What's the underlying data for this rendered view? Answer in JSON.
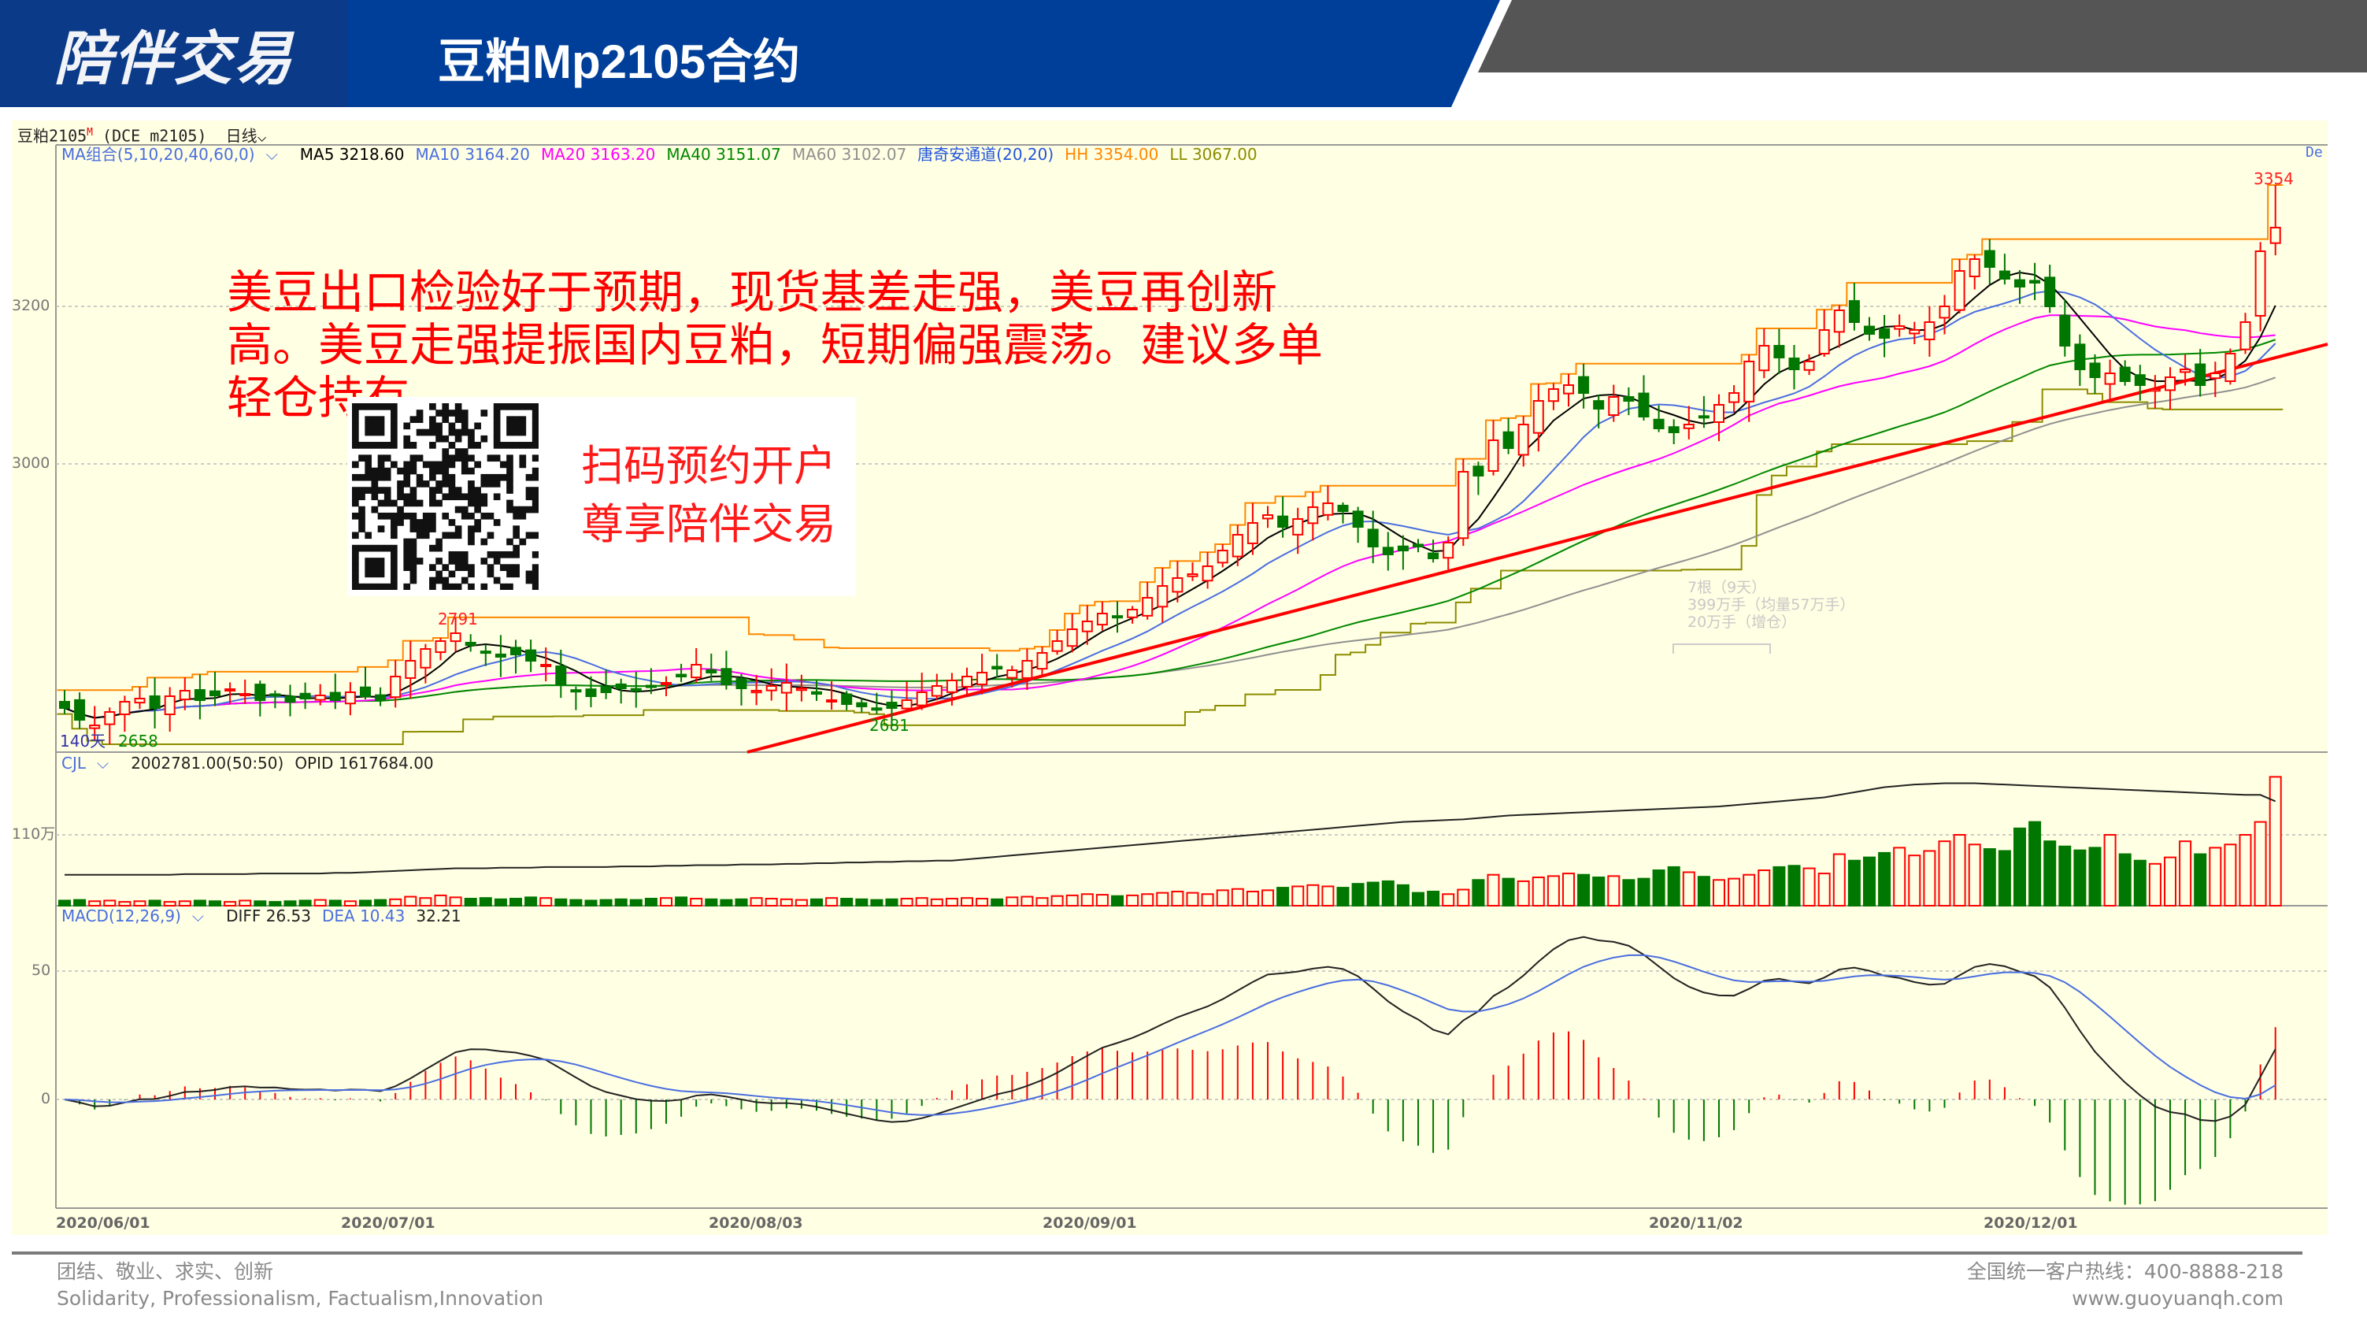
{
  "header": {
    "logo_text": "陪伴交易",
    "title": "豆粕Mp2105合约",
    "colors": {
      "band": "#003f99",
      "logo_bg": "#0b3a88",
      "gray_band": "#555555"
    }
  },
  "chart_header": {
    "symbol": "豆粕2105",
    "symbol_flag": "M",
    "exchange_code": "(DCE m2105)",
    "period": "日线",
    "period_icon": "chevron-down-icon"
  },
  "indicators": {
    "ma_group": "MA组合(5,10,20,40,60,0)",
    "ma5": "MA5 3218.60",
    "ma10": "MA10 3164.20",
    "ma20": "MA20 3163.20",
    "ma40": "MA40 3151.07",
    "ma60": "MA60 3102.07",
    "channel": "唐奇安通道(20,20)",
    "hh": "HH 3354.00",
    "ll": "LL 3067.00",
    "right_label": "De"
  },
  "volume_panel": {
    "name": "CJL",
    "value": "2002781.00(50:50)",
    "opid": "OPID 1617684.00",
    "axis_label": "110万"
  },
  "macd_panel": {
    "name": "MACD(12,26,9)",
    "diff": "DIFF 26.53",
    "dea": "DEA 10.43",
    "macd": "32.21",
    "axis_labels": [
      "50",
      "0"
    ]
  },
  "comment": "美豆出口检验好于预期，现货基差走强，美豆再创新高。美豆走强提振国内豆粕，短期偏强震荡。建议多单轻仓持有。",
  "promo": {
    "line1": "扫码预约开户",
    "line2": "尊享陪伴交易"
  },
  "volume_note": [
    "7根（9天）",
    "399万手（均量57万手）",
    "20万手（增仓）"
  ],
  "footer": {
    "motto_cn": "团结、敬业、求实、创新",
    "motto_en": "Solidarity, Professionalism, Factualism,Innovation",
    "hotline": "全国统一客户热线：400-8888-218",
    "website": "www.guoyuanqh.com"
  },
  "chart_data": {
    "type": "candlestick",
    "price_axis": {
      "ticks": [
        "3200",
        "3000"
      ]
    },
    "x_ticks": [
      "2020/06/01",
      "2020/07/01",
      "2020/08/03",
      "2020/09/01",
      "2020/11/02",
      "2020/12/01"
    ],
    "annotations": {
      "high_last": "3354",
      "high_july": "2791",
      "low_aug": "2681",
      "low_june": "2658",
      "bar_count": "140天"
    },
    "colors": {
      "up": "#ff0000",
      "down": "#007700",
      "ma5": "#000000",
      "ma10": "#4a6ee0",
      "ma20": "#ff00ff",
      "ma40": "#008800",
      "ma60": "#909090",
      "hh": "#ff8800",
      "ll": "#8c8c00",
      "trendline": "#ff0000"
    },
    "close": [
      2690,
      2675,
      2668,
      2685,
      2698,
      2702,
      2690,
      2705,
      2712,
      2700,
      2706,
      2714,
      2708,
      2700,
      2706,
      2698,
      2702,
      2706,
      2700,
      2710,
      2705,
      2700,
      2730,
      2750,
      2765,
      2775,
      2785,
      2770,
      2760,
      2755,
      2758,
      2750,
      2745,
      2720,
      2712,
      2705,
      2710,
      2715,
      2712,
      2718,
      2722,
      2730,
      2745,
      2735,
      2720,
      2715,
      2712,
      2718,
      2722,
      2715,
      2708,
      2700,
      2695,
      2692,
      2688,
      2690,
      2700,
      2710,
      2718,
      2725,
      2730,
      2735,
      2740,
      2738,
      2750,
      2760,
      2775,
      2790,
      2800,
      2810,
      2805,
      2815,
      2830,
      2845,
      2855,
      2860,
      2870,
      2890,
      2910,
      2925,
      2935,
      2920,
      2930,
      2945,
      2950,
      2940,
      2920,
      2895,
      2885,
      2890,
      2895,
      2880,
      2900,
      2990,
      2985,
      3030,
      3020,
      3050,
      3080,
      3095,
      3100,
      3090,
      3070,
      3085,
      3080,
      3060,
      3045,
      3040,
      3050,
      3060,
      3075,
      3090,
      3130,
      3150,
      3135,
      3120,
      3130,
      3170,
      3195,
      3180,
      3165,
      3160,
      3175,
      3170,
      3180,
      3200,
      3245,
      3260,
      3250,
      3235,
      3225,
      3230,
      3200,
      3150,
      3120,
      3110,
      3115,
      3105,
      3100,
      3095,
      3110,
      3120,
      3100,
      3115,
      3140,
      3180,
      3270,
      3300
    ],
    "volume_wan": [
      8,
      9,
      7,
      8,
      6,
      7,
      8,
      6,
      7,
      8,
      7,
      6,
      8,
      7,
      6,
      7,
      8,
      9,
      8,
      7,
      8,
      9,
      10,
      14,
      12,
      16,
      13,
      11,
      12,
      10,
      11,
      13,
      12,
      10,
      9,
      8,
      9,
      10,
      9,
      11,
      12,
      13,
      11,
      10,
      9,
      10,
      12,
      11,
      10,
      9,
      10,
      12,
      11,
      10,
      9,
      10,
      11,
      12,
      10,
      11,
      12,
      11,
      10,
      13,
      14,
      12,
      15,
      16,
      18,
      17,
      15,
      16,
      18,
      20,
      22,
      20,
      18,
      24,
      26,
      22,
      24,
      28,
      30,
      32,
      30,
      28,
      34,
      36,
      38,
      32,
      20,
      22,
      18,
      25,
      40,
      48,
      42,
      38,
      44,
      46,
      50,
      48,
      44,
      46,
      40,
      42,
      55,
      60,
      52,
      45,
      40,
      42,
      48,
      55,
      60,
      62,
      58,
      50,
      80,
      70,
      75,
      82,
      90,
      78,
      85,
      100,
      110,
      95,
      88,
      85,
      120,
      130,
      100,
      92,
      86,
      90,
      110,
      80,
      70,
      65,
      75,
      100,
      80,
      90,
      95,
      110,
      130,
      200
    ],
    "open_interest_wan": [
      48,
      48,
      48,
      48,
      48,
      48,
      48,
      48,
      49,
      49,
      49,
      49,
      49,
      50,
      50,
      50,
      50,
      50,
      51,
      51,
      52,
      53,
      54,
      55,
      56,
      57,
      58,
      58,
      58,
      59,
      59,
      59,
      60,
      60,
      60,
      60,
      60,
      61,
      61,
      61,
      62,
      62,
      63,
      63,
      63,
      64,
      64,
      64,
      65,
      65,
      66,
      66,
      67,
      67,
      68,
      68,
      69,
      69,
      70,
      70,
      72,
      74,
      76,
      78,
      80,
      82,
      84,
      86,
      88,
      90,
      92,
      94,
      96,
      98,
      100,
      102,
      104,
      106,
      108,
      110,
      112,
      114,
      116,
      118,
      120,
      122,
      124,
      126,
      128,
      130,
      131,
      132,
      133,
      134,
      136,
      138,
      140,
      141,
      142,
      143,
      144,
      145,
      146,
      147,
      148,
      149,
      150,
      151,
      152,
      153,
      154,
      156,
      158,
      160,
      162,
      164,
      166,
      168,
      172,
      176,
      180,
      184,
      186,
      188,
      189,
      190,
      190,
      190,
      189,
      188,
      187,
      186,
      185,
      184,
      183,
      182,
      181,
      180,
      179,
      178,
      177,
      176,
      175,
      174,
      173,
      172,
      172,
      162
    ]
  }
}
